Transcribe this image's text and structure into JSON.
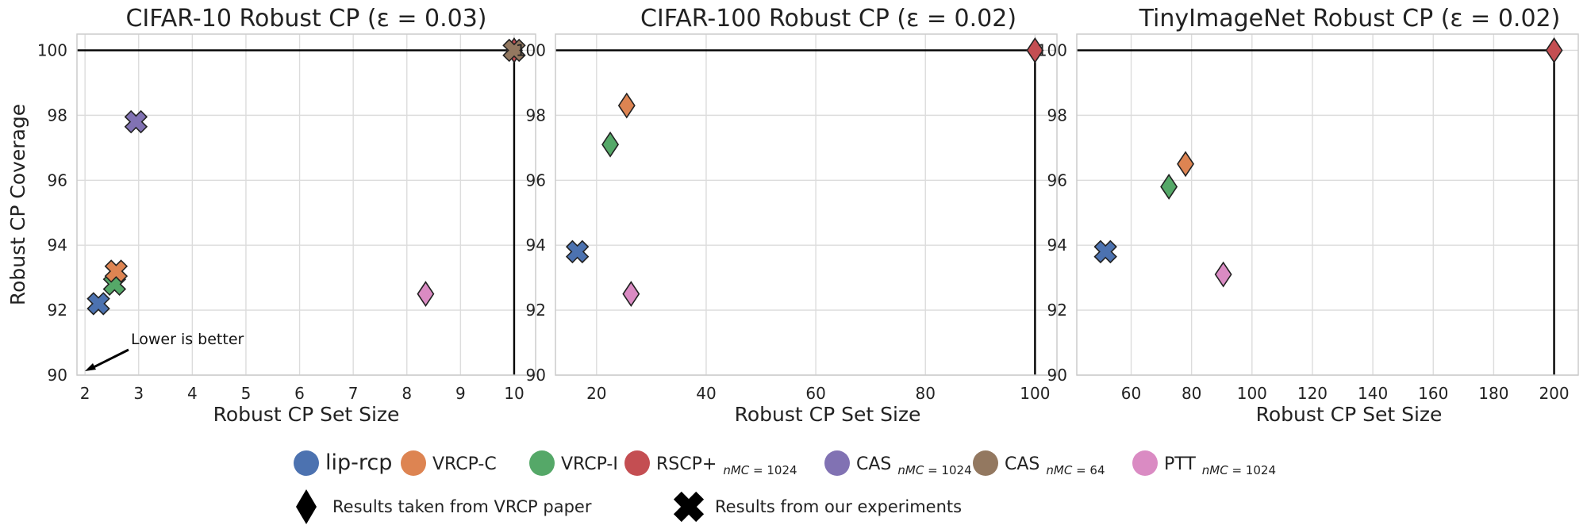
{
  "chart_data": [
    {
      "type": "scatter",
      "title": "CIFAR-10 Robust CP (ε = 0.03)",
      "xlabel": "Robust CP Set Size",
      "ylabel": "Robust CP Coverage",
      "xlim": [
        1.85,
        10.4
      ],
      "ylim": [
        90,
        100.5
      ],
      "xticks": [
        2,
        3,
        4,
        5,
        6,
        7,
        8,
        9,
        10
      ],
      "yticks": [
        90,
        92,
        94,
        96,
        98,
        100
      ],
      "grid": true,
      "reference_lines": {
        "hline": 100,
        "vline": 10
      },
      "annotation": {
        "text": "Lower is better",
        "arrow_to": [
          2.05,
          90.2
        ]
      },
      "points": [
        {
          "method": "lip-rcp",
          "marker": "x",
          "x": 2.25,
          "y": 92.2
        },
        {
          "method": "VRCP-I",
          "marker": "x",
          "x": 2.55,
          "y": 92.8
        },
        {
          "method": "VRCP-C",
          "marker": "x",
          "x": 2.58,
          "y": 93.2
        },
        {
          "method": "CAS_1024",
          "marker": "x",
          "x": 2.95,
          "y": 97.8
        },
        {
          "method": "PTT",
          "marker": "diamond",
          "x": 8.35,
          "y": 92.5
        },
        {
          "method": "RSCP+",
          "marker": "diamond",
          "x": 10,
          "y": 100
        },
        {
          "method": "CAS_64",
          "marker": "x",
          "x": 10,
          "y": 100
        }
      ]
    },
    {
      "type": "scatter",
      "title": "CIFAR-100 Robust CP (ε = 0.02)",
      "xlabel": "Robust CP Set Size",
      "ylabel": "",
      "xlim": [
        12.5,
        104
      ],
      "ylim": [
        90,
        100.5
      ],
      "xticks": [
        20,
        40,
        60,
        80,
        100
      ],
      "yticks": [
        90,
        92,
        94,
        96,
        98,
        100
      ],
      "grid": true,
      "reference_lines": {
        "hline": 100,
        "vline": 100
      },
      "points": [
        {
          "method": "lip-rcp",
          "marker": "x",
          "x": 16.5,
          "y": 93.8
        },
        {
          "method": "VRCP-I",
          "marker": "diamond",
          "x": 22.5,
          "y": 97.1
        },
        {
          "method": "VRCP-C",
          "marker": "diamond",
          "x": 25.5,
          "y": 98.3
        },
        {
          "method": "PTT",
          "marker": "diamond",
          "x": 26.3,
          "y": 92.5
        },
        {
          "method": "RSCP+",
          "marker": "diamond",
          "x": 100,
          "y": 100
        }
      ]
    },
    {
      "type": "scatter",
      "title": "TinyImageNet Robust CP (ε = 0.02)",
      "xlabel": "Robust CP Set Size",
      "ylabel": "",
      "xlim": [
        42,
        208
      ],
      "ylim": [
        90,
        100.5
      ],
      "xticks": [
        60,
        80,
        100,
        120,
        140,
        160,
        180,
        200
      ],
      "yticks": [
        90,
        92,
        94,
        96,
        98,
        100
      ],
      "grid": true,
      "reference_lines": {
        "hline": 100,
        "vline": 200
      },
      "points": [
        {
          "method": "lip-rcp",
          "marker": "x",
          "x": 51.5,
          "y": 93.8
        },
        {
          "method": "VRCP-I",
          "marker": "diamond",
          "x": 72.5,
          "y": 95.8
        },
        {
          "method": "VRCP-C",
          "marker": "diamond",
          "x": 78,
          "y": 96.5
        },
        {
          "method": "PTT",
          "marker": "diamond",
          "x": 90.5,
          "y": 93.1
        },
        {
          "method": "RSCP+",
          "marker": "diamond",
          "x": 200,
          "y": 100
        }
      ]
    }
  ],
  "legend": {
    "methods": [
      {
        "key": "lip-rcp",
        "label": "lip-rcp",
        "sub": "",
        "color": "#4c72b0"
      },
      {
        "key": "VRCP-C",
        "label": "VRCP-C",
        "sub": "",
        "color": "#dd8452"
      },
      {
        "key": "VRCP-I",
        "label": "VRCP-I",
        "sub": "",
        "color": "#55a868"
      },
      {
        "key": "RSCP+",
        "label": "RSCP+",
        "sub": "n_MC = 1024",
        "color": "#c44e52"
      },
      {
        "key": "CAS_1024",
        "label": "CAS",
        "sub": "n_MC = 1024",
        "color": "#8172b3"
      },
      {
        "key": "CAS_64",
        "label": "CAS",
        "sub": "n_MC = 64",
        "color": "#937860"
      },
      {
        "key": "PTT",
        "label": "PTT",
        "sub": "n_MC = 1024",
        "color": "#da8bc3"
      }
    ],
    "markers": [
      {
        "marker": "diamond",
        "label": "Results taken from VRCP paper"
      },
      {
        "marker": "x",
        "label": "Results from our experiments"
      }
    ]
  }
}
